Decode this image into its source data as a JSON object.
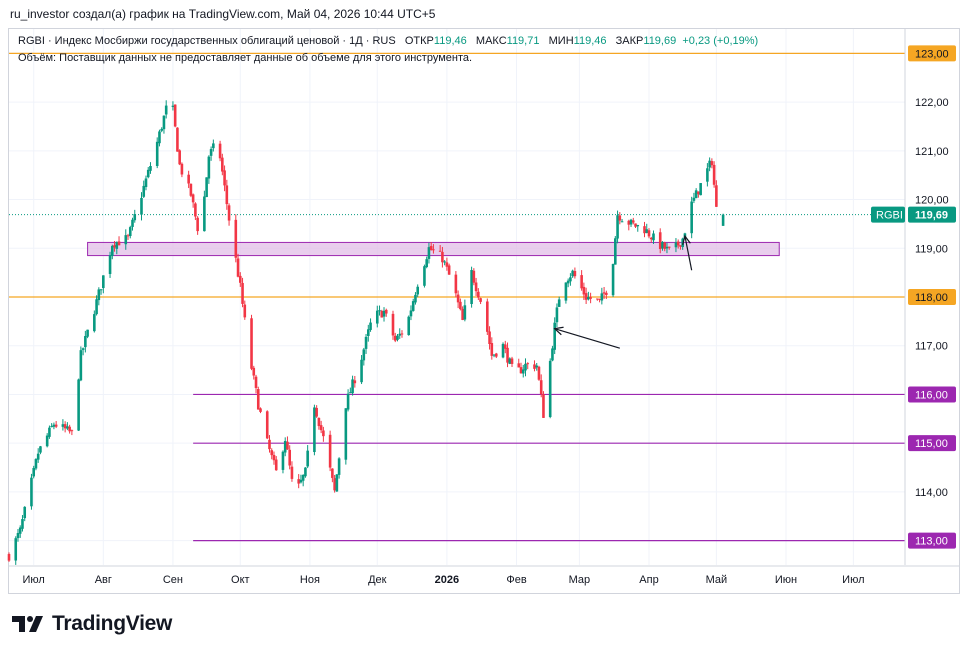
{
  "header": "ru_investor создал(а) график на TradingView.com, Май 04, 2026 10:44 UTC+5",
  "legend": {
    "symbol": "RGBI · Индекс Мосбиржи государственных облигаций ценовой · 1Д · RUS",
    "open_label": "ОТКР",
    "open": "119,46",
    "high_label": "МАКС",
    "high": "119,71",
    "low_label": "МИН",
    "low": "119,46",
    "close_label": "ЗАКР",
    "close": "119,69",
    "change": "+0,23 (+0,19%)",
    "volume_note": "Объём: Поставщик данных не предоставляет данные об объеме для этого инструмента."
  },
  "brand": "TradingView",
  "colors": {
    "up": "#089981",
    "down": "#f23645",
    "orange": "#f5a623",
    "purple": "#9c27b0",
    "zone": "#e1bee7"
  },
  "chart_data": {
    "type": "candlestick",
    "ylim": [
      112.5,
      123.5
    ],
    "y_ticks": [
      {
        "value": 114,
        "label": "114,00"
      },
      {
        "value": 117,
        "label": "117,00"
      },
      {
        "value": 119,
        "label": "119,00"
      },
      {
        "value": 120,
        "label": "120,00"
      },
      {
        "value": 121,
        "label": "121,00"
      },
      {
        "value": 122,
        "label": "122,00"
      }
    ],
    "x_ticks": [
      {
        "date": "2025-07-01",
        "label": "Июл"
      },
      {
        "date": "2025-08-01",
        "label": "Авг"
      },
      {
        "date": "2025-09-01",
        "label": "Сен"
      },
      {
        "date": "2025-10-01",
        "label": "Окт"
      },
      {
        "date": "2025-11-01",
        "label": "Ноя"
      },
      {
        "date": "2025-12-01",
        "label": "Дек"
      },
      {
        "date": "2026-01-01",
        "label": "2026"
      },
      {
        "date": "2026-02-01",
        "label": "Фев"
      },
      {
        "date": "2026-03-01",
        "label": "Мар"
      },
      {
        "date": "2026-04-01",
        "label": "Апр"
      },
      {
        "date": "2026-05-01",
        "label": "Май"
      },
      {
        "date": "2026-06-01",
        "label": "Июн"
      },
      {
        "date": "2026-07-01",
        "label": "Июл"
      }
    ],
    "x_range": [
      "2025-06-20",
      "2026-07-24"
    ],
    "price_levels": [
      {
        "value": 123.0,
        "label": "123,00",
        "color": "#f5a623",
        "from": "2025-06-20"
      },
      {
        "value": 118.0,
        "label": "118,00",
        "color": "#f5a623",
        "from": "2025-06-20"
      },
      {
        "value": 116.0,
        "label": "116,00",
        "color": "#9c27b0",
        "from": "2025-09-10"
      },
      {
        "value": 115.0,
        "label": "115,00",
        "color": "#9c27b0",
        "from": "2025-09-10"
      },
      {
        "value": 113.0,
        "label": "113,00",
        "color": "#9c27b0",
        "from": "2025-09-10"
      }
    ],
    "zone": {
      "from": "2025-07-25",
      "to": "2026-05-29",
      "low": 118.85,
      "high": 119.12
    },
    "last_price": {
      "symbol": "RGBI",
      "value": 119.69,
      "label": "119,69"
    },
    "arrows": [
      {
        "from_date": "2026-04-20",
        "from_value": 118.55,
        "to_date": "2026-04-17",
        "to_value": 119.25
      },
      {
        "from_date": "2026-03-19",
        "from_value": 116.95,
        "to_date": "2026-02-18",
        "to_value": 117.35
      }
    ],
    "waypoints": [
      {
        "date": "2025-06-20",
        "value": 112.7
      },
      {
        "date": "2025-06-25",
        "value": 113.2
      },
      {
        "date": "2025-07-03",
        "value": 114.8
      },
      {
        "date": "2025-07-10",
        "value": 115.4
      },
      {
        "date": "2025-07-18",
        "value": 115.2
      },
      {
        "date": "2025-07-22",
        "value": 116.8
      },
      {
        "date": "2025-07-29",
        "value": 117.9
      },
      {
        "date": "2025-08-05",
        "value": 119.1
      },
      {
        "date": "2025-08-12",
        "value": 119.2
      },
      {
        "date": "2025-08-18",
        "value": 120.1
      },
      {
        "date": "2025-08-24",
        "value": 121.0
      },
      {
        "date": "2025-08-31",
        "value": 122.2
      },
      {
        "date": "2025-09-04",
        "value": 120.7
      },
      {
        "date": "2025-09-09",
        "value": 120.1
      },
      {
        "date": "2025-09-13",
        "value": 119.2
      },
      {
        "date": "2025-09-17",
        "value": 120.9
      },
      {
        "date": "2025-09-21",
        "value": 121.2
      },
      {
        "date": "2025-09-26",
        "value": 119.6
      },
      {
        "date": "2025-10-01",
        "value": 118.2
      },
      {
        "date": "2025-10-05",
        "value": 116.8
      },
      {
        "date": "2025-10-09",
        "value": 115.8
      },
      {
        "date": "2025-10-13",
        "value": 115.0
      },
      {
        "date": "2025-10-17",
        "value": 114.4
      },
      {
        "date": "2025-10-21",
        "value": 115.1
      },
      {
        "date": "2025-10-25",
        "value": 113.9
      },
      {
        "date": "2025-10-30",
        "value": 114.4
      },
      {
        "date": "2025-11-03",
        "value": 115.8
      },
      {
        "date": "2025-11-07",
        "value": 115.1
      },
      {
        "date": "2025-11-12",
        "value": 114.0
      },
      {
        "date": "2025-11-17",
        "value": 115.8
      },
      {
        "date": "2025-11-23",
        "value": 116.6
      },
      {
        "date": "2025-11-29",
        "value": 117.6
      },
      {
        "date": "2025-12-04",
        "value": 117.7
      },
      {
        "date": "2025-12-09",
        "value": 117.1
      },
      {
        "date": "2025-12-14",
        "value": 117.4
      },
      {
        "date": "2025-12-19",
        "value": 118.3
      },
      {
        "date": "2025-12-24",
        "value": 119.0
      },
      {
        "date": "2025-12-30",
        "value": 118.8
      },
      {
        "date": "2026-01-04",
        "value": 118.2
      },
      {
        "date": "2026-01-08",
        "value": 117.5
      },
      {
        "date": "2026-01-12",
        "value": 118.5
      },
      {
        "date": "2026-01-17",
        "value": 117.8
      },
      {
        "date": "2026-01-21",
        "value": 116.8
      },
      {
        "date": "2026-01-26",
        "value": 117.0
      },
      {
        "date": "2026-01-31",
        "value": 116.4
      },
      {
        "date": "2026-02-05",
        "value": 116.6
      },
      {
        "date": "2026-02-10",
        "value": 116.6
      },
      {
        "date": "2026-02-13",
        "value": 115.6
      },
      {
        "date": "2026-02-18",
        "value": 117.4
      },
      {
        "date": "2026-02-21",
        "value": 118.3
      },
      {
        "date": "2026-02-26",
        "value": 118.5
      },
      {
        "date": "2026-03-04",
        "value": 118.0
      },
      {
        "date": "2026-03-10",
        "value": 117.9
      },
      {
        "date": "2026-03-15",
        "value": 118.3
      },
      {
        "date": "2026-03-18",
        "value": 119.7
      },
      {
        "date": "2026-03-24",
        "value": 119.5
      },
      {
        "date": "2026-03-30",
        "value": 119.4
      },
      {
        "date": "2026-04-05",
        "value": 119.1
      },
      {
        "date": "2026-04-11",
        "value": 118.9
      },
      {
        "date": "2026-04-16",
        "value": 119.2
      },
      {
        "date": "2026-04-20",
        "value": 119.9
      },
      {
        "date": "2026-04-25",
        "value": 120.4
      },
      {
        "date": "2026-04-29",
        "value": 120.8
      },
      {
        "date": "2026-05-01",
        "value": 119.8
      },
      {
        "date": "2026-05-04",
        "value": 119.69
      }
    ]
  }
}
